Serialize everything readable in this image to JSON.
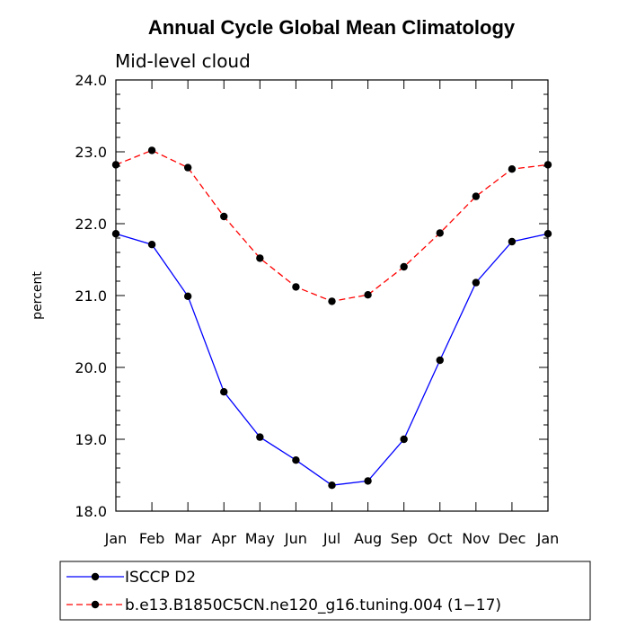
{
  "chart_data": {
    "type": "line",
    "title": "Annual Cycle Global Mean Climatology",
    "subtitle": "Mid-level cloud",
    "xlabel": "",
    "ylabel": "percent",
    "categories": [
      "Jan",
      "Feb",
      "Mar",
      "Apr",
      "May",
      "Jun",
      "Jul",
      "Aug",
      "Sep",
      "Oct",
      "Nov",
      "Dec",
      "Jan"
    ],
    "ylim": [
      18.0,
      24.0
    ],
    "yticks": [
      "18.0",
      "19.0",
      "20.0",
      "21.0",
      "22.0",
      "23.0",
      "24.0"
    ],
    "grid": false,
    "legend_position": "bottom",
    "series": [
      {
        "name": "ISCCP D2",
        "color": "#0000ff",
        "dash": "solid",
        "values": [
          21.86,
          21.71,
          20.99,
          19.66,
          19.03,
          18.71,
          18.36,
          18.42,
          19.0,
          20.1,
          21.18,
          21.75,
          21.86
        ]
      },
      {
        "name": "b.e13.B1850C5CN.ne120_g16.tuning.004 (1−17)",
        "color": "#ff0000",
        "dash": "dashed",
        "values": [
          22.82,
          23.02,
          22.78,
          22.1,
          21.52,
          21.12,
          20.92,
          21.01,
          21.4,
          21.87,
          22.38,
          22.76,
          22.82
        ]
      }
    ]
  }
}
